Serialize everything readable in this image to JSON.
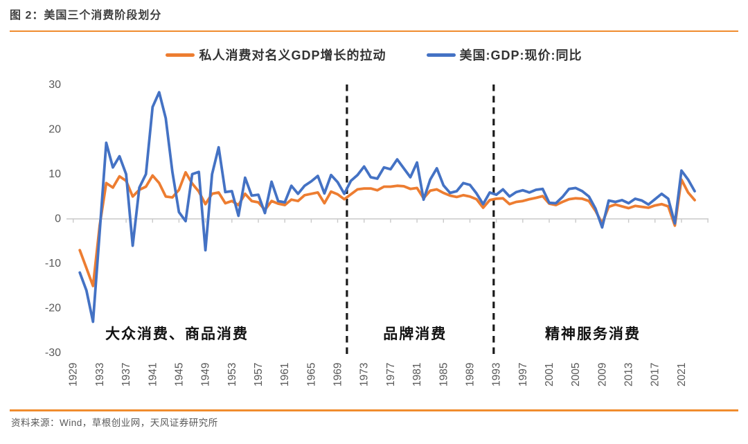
{
  "header": {
    "title": "图 2：美国三个消费阶段划分"
  },
  "footer": {
    "source": "资料来源：Wind，草根创业网，天风证券研究所"
  },
  "colors": {
    "accent_orange": "#f08c2e",
    "series_orange": "#ED7D31",
    "series_blue": "#4472C4",
    "axis_gray": "#c9c9c9",
    "tick_text_gray": "#595959",
    "divider_black": "#1a1a1a"
  },
  "chart_data": {
    "type": "line",
    "title": "",
    "xlabel": "",
    "ylabel": "",
    "ylim": [
      -30,
      30
    ],
    "yticks": [
      30,
      20,
      10,
      0,
      -10,
      -20,
      -30
    ],
    "xticks": [
      1929,
      1933,
      1937,
      1941,
      1945,
      1949,
      1953,
      1957,
      1961,
      1965,
      1969,
      1973,
      1977,
      1981,
      1985,
      1989,
      1993,
      1997,
      2001,
      2005,
      2009,
      2013,
      2017,
      2021
    ],
    "grid": false,
    "legend_position": "top-center",
    "legend": [
      {
        "name": "私人消费对名义GDP增长的拉动",
        "color": "#ED7D31"
      },
      {
        "name": "美国:GDP:现价:同比",
        "color": "#4472C4"
      }
    ],
    "x": [
      1930,
      1931,
      1932,
      1933,
      1934,
      1935,
      1936,
      1937,
      1938,
      1939,
      1940,
      1941,
      1942,
      1943,
      1944,
      1945,
      1946,
      1947,
      1948,
      1949,
      1950,
      1951,
      1952,
      1953,
      1954,
      1955,
      1956,
      1957,
      1958,
      1959,
      1960,
      1961,
      1962,
      1963,
      1964,
      1965,
      1966,
      1967,
      1968,
      1969,
      1970,
      1971,
      1972,
      1973,
      1974,
      1975,
      1976,
      1977,
      1978,
      1979,
      1980,
      1981,
      1982,
      1983,
      1984,
      1985,
      1986,
      1987,
      1988,
      1989,
      1990,
      1991,
      1992,
      1993,
      1994,
      1995,
      1996,
      1997,
      1998,
      1999,
      2000,
      2001,
      2002,
      2003,
      2004,
      2005,
      2006,
      2007,
      2008,
      2009,
      2010,
      2011,
      2012,
      2013,
      2014,
      2015,
      2016,
      2017,
      2018,
      2019,
      2020,
      2021,
      2022,
      2023
    ],
    "series": [
      {
        "name": "私人消费对名义GDP增长的拉动",
        "color": "#ED7D31",
        "values": [
          -7,
          -11,
          -15,
          -1.5,
          8,
          7,
          9.5,
          8.5,
          5,
          6.5,
          7.2,
          9.7,
          8,
          5,
          4.8,
          6.5,
          10.4,
          7.9,
          6.1,
          3.3,
          5.6,
          5.9,
          3.5,
          4,
          3.1,
          5.6,
          4,
          3.7,
          2,
          4,
          3.4,
          3.1,
          4.3,
          4,
          5.3,
          5.6,
          5.9,
          3.5,
          6.1,
          5.5,
          4.4,
          5.5,
          6.6,
          6.8,
          6.8,
          6.4,
          7.2,
          7.2,
          7.4,
          7.3,
          6.7,
          6.9,
          4.6,
          6.3,
          6.6,
          5.8,
          5.2,
          4.9,
          5.3,
          5,
          4.4,
          2.5,
          4.2,
          4.5,
          4.6,
          3.3,
          3.8,
          4,
          4.4,
          4.7,
          5.1,
          3.4,
          3.1,
          3.8,
          4.4,
          4.6,
          4.5,
          4,
          1.8,
          -1,
          2.7,
          3.2,
          2.8,
          2.4,
          2.9,
          2.7,
          2.5,
          3,
          3.3,
          2.8,
          -1.5,
          8.8,
          5.9,
          4.2
        ]
      },
      {
        "name": "美国:GDP:现价:同比",
        "color": "#4472C4",
        "values": [
          -12,
          -16,
          -23,
          -3,
          17,
          11.5,
          14,
          10,
          -6,
          7,
          10,
          25,
          28.3,
          22.5,
          10.5,
          1.5,
          -0.5,
          10,
          10.5,
          -7,
          10,
          16,
          6,
          6.2,
          0.7,
          9.2,
          5.2,
          5.4,
          1.3,
          8.3,
          4,
          3.7,
          7.4,
          5.6,
          7.4,
          8.4,
          9.6,
          5.7,
          9.8,
          8.2,
          5.6,
          8.5,
          9.8,
          11.7,
          9.3,
          9,
          11.5,
          11.1,
          13.3,
          11.3,
          9.3,
          12.6,
          4.3,
          8.8,
          11.3,
          7.5,
          5.8,
          6.2,
          8,
          7.6,
          5.7,
          3.3,
          5.9,
          5.4,
          6.6,
          5,
          6,
          6.4,
          5.9,
          6.5,
          6.7,
          3.6,
          3.5,
          4.9,
          6.7,
          6.9,
          6.2,
          5,
          2.3,
          -1.9,
          4.1,
          3.8,
          4.2,
          3.5,
          4.5,
          4.1,
          3.2,
          4.4,
          5.6,
          4.5,
          -1,
          10.8,
          8.8,
          6.2
        ]
      }
    ],
    "annotations": {
      "dividers_x": [
        1970.4,
        1992.6
      ],
      "regions": [
        {
          "label": "大众消费、商品消费",
          "x_center": 1944.7
        },
        {
          "label": "品牌消费",
          "x_center": 1980.7
        },
        {
          "label": "精神服务消费",
          "x_center": 2007.6
        }
      ]
    }
  }
}
